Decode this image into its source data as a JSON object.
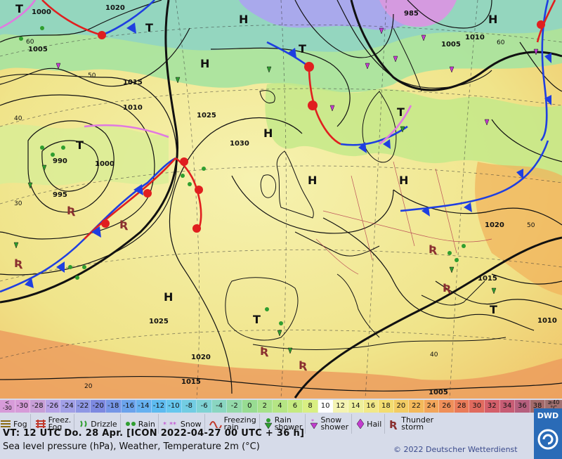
{
  "map": {
    "pressure_labels": [
      "1000",
      "1020",
      "1005",
      "1015",
      "1010",
      "1025",
      "1030",
      "990",
      "995",
      "985",
      "1005",
      "1010",
      "1020",
      "1015",
      "1010",
      "1025",
      "1020",
      "1015",
      "1005",
      "1000"
    ],
    "lat_labels": [
      "60",
      "50",
      "40",
      "30",
      "20",
      "50",
      "60",
      "40"
    ],
    "centers": [
      {
        "type": "H",
        "name": "high"
      },
      {
        "type": "T",
        "name": "low"
      }
    ]
  },
  "legend": {
    "scale_first": "<\n-30",
    "scale_values": [
      "-30",
      "-28",
      "-26",
      "-24",
      "-22",
      "-20",
      "-18",
      "-16",
      "-14",
      "-12",
      "-10",
      "-8",
      "-6",
      "-4",
      "-2",
      "0",
      "2",
      "4",
      "6",
      "8",
      "10",
      "12",
      "14",
      "16",
      "18",
      "20",
      "22",
      "24",
      "26",
      "28",
      "30",
      "32",
      "34",
      "36",
      "38"
    ],
    "scale_last": "≥40\n°C",
    "colors": [
      "#d79bd9",
      "#c79ed6",
      "#b6a2e6",
      "#a19fe6",
      "#8e97e4",
      "#7d89e0",
      "#7696e6",
      "#6ba3ec",
      "#66b1f0",
      "#5dbbf0",
      "#66c7ee",
      "#72cde3",
      "#7fd3d4",
      "#8ad6c1",
      "#93d9a9",
      "#98dc92",
      "#a7e18a",
      "#b5e584",
      "#c5ea80",
      "#d9ef82",
      "#ffffff",
      "#f4f3b2",
      "#eef09c",
      "#f1e888",
      "#f3dd70",
      "#f2cc63",
      "#f3b95a",
      "#f2a55a",
      "#ef8f59",
      "#e97b59",
      "#e06a5e",
      "#d45f6a",
      "#c75c74",
      "#b65f7e",
      "#a36a6a"
    ],
    "weather": [
      {
        "label": "Fog"
      },
      {
        "label": "Freez.\nFog"
      },
      {
        "label": "Drizzle"
      },
      {
        "label": "Rain"
      },
      {
        "label": "Snow"
      },
      {
        "label": "Freezing\nrain"
      },
      {
        "label": "Rain\nshower"
      },
      {
        "label": "Snow\nshower"
      },
      {
        "label": "Hail"
      },
      {
        "label": "Thunder\nstorm"
      }
    ],
    "valid_time": "VT: 12 UTC Do.  28 Apr. [ICON 2022-04-27  00 UTC + 36 h]",
    "description": "Sea level pressure (hPa), Weather, Temperature 2m (°C)",
    "copyright": "© 2022 Deutscher Wetterdienst",
    "logo": "DWD"
  }
}
